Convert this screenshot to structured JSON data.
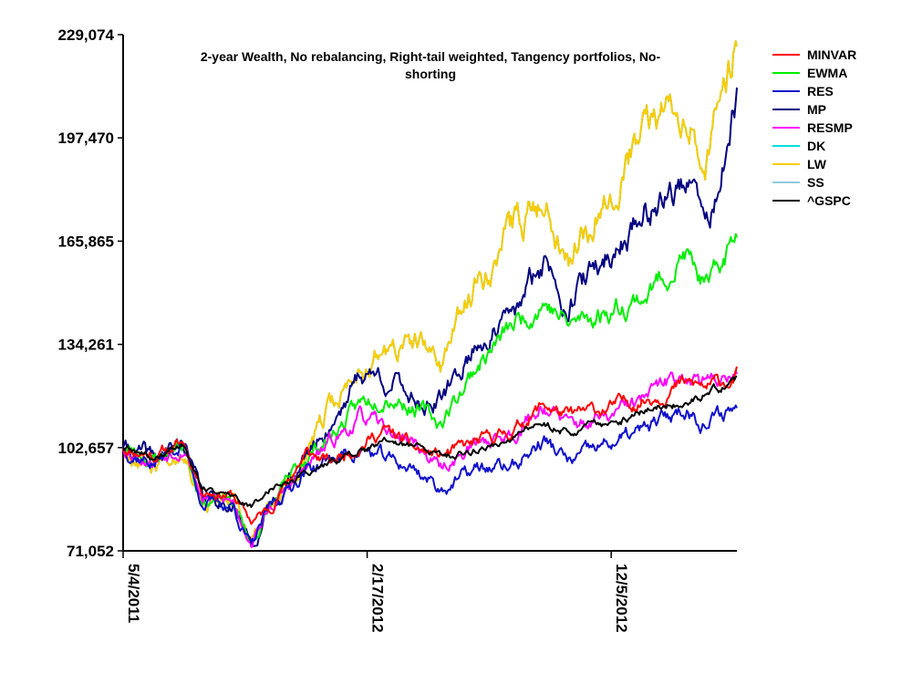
{
  "chart_data": {
    "type": "line",
    "title": "2-year Wealth, No rebalancing, Right-tail weighted, Tangency portfolios, No-shorting",
    "title_lines": [
      "2-year Wealth, No rebalancing, Right-tail weighted, Tangency portfolios, No-",
      "shorting"
    ],
    "xlabel": "",
    "ylabel": "",
    "ylim": [
      71052,
      229074
    ],
    "y_ticks": [
      "71,052",
      "102,657",
      "134,261",
      "165,865",
      "197,470",
      "229,074"
    ],
    "y_tick_values": [
      71052,
      102657,
      134261,
      165865,
      197470,
      229074
    ],
    "x_ticks": [
      "5/4/2011",
      "2/17/2012",
      "12/5/2012"
    ],
    "x_tick_index": [
      0,
      200,
      400
    ],
    "n_points": 504,
    "legend_position": "top-right",
    "series": [
      {
        "name": "MINVAR",
        "color": "#ff0000",
        "anchors": [
          [
            0,
            102657
          ],
          [
            25,
            100500
          ],
          [
            50,
            104000
          ],
          [
            65,
            90000
          ],
          [
            90,
            88000
          ],
          [
            105,
            80000
          ],
          [
            120,
            84000
          ],
          [
            150,
            101000
          ],
          [
            170,
            98000
          ],
          [
            195,
            104000
          ],
          [
            215,
            108000
          ],
          [
            240,
            102000
          ],
          [
            260,
            100000
          ],
          [
            290,
            104000
          ],
          [
            320,
            108000
          ],
          [
            345,
            116000
          ],
          [
            365,
            112000
          ],
          [
            400,
            115000
          ],
          [
            430,
            118000
          ],
          [
            460,
            122000
          ],
          [
            480,
            121000
          ],
          [
            503,
            124500
          ]
        ]
      },
      {
        "name": "EWMA",
        "color": "#00ee00",
        "anchors": [
          [
            0,
            102657
          ],
          [
            25,
            99000
          ],
          [
            50,
            104000
          ],
          [
            65,
            87000
          ],
          [
            90,
            86000
          ],
          [
            105,
            73000
          ],
          [
            120,
            84000
          ],
          [
            150,
            100000
          ],
          [
            170,
            106000
          ],
          [
            195,
            116000
          ],
          [
            215,
            120000
          ],
          [
            240,
            115000
          ],
          [
            260,
            110000
          ],
          [
            290,
            128000
          ],
          [
            320,
            140000
          ],
          [
            345,
            148000
          ],
          [
            365,
            140000
          ],
          [
            400,
            145000
          ],
          [
            430,
            150000
          ],
          [
            460,
            162000
          ],
          [
            480,
            150000
          ],
          [
            503,
            169000
          ]
        ]
      },
      {
        "name": "RES",
        "color": "#1010cc",
        "anchors": [
          [
            0,
            102657
          ],
          [
            25,
            98000
          ],
          [
            50,
            104000
          ],
          [
            65,
            86000
          ],
          [
            90,
            85000
          ],
          [
            105,
            72000
          ],
          [
            120,
            84000
          ],
          [
            150,
            96000
          ],
          [
            170,
            99000
          ],
          [
            195,
            102000
          ],
          [
            215,
            99000
          ],
          [
            240,
            96000
          ],
          [
            260,
            90000
          ],
          [
            290,
            96000
          ],
          [
            320,
            97000
          ],
          [
            345,
            105000
          ],
          [
            365,
            98000
          ],
          [
            400,
            104000
          ],
          [
            430,
            108000
          ],
          [
            460,
            115000
          ],
          [
            480,
            110000
          ],
          [
            503,
            116000
          ]
        ]
      },
      {
        "name": "MP",
        "color": "#000080",
        "anchors": [
          [
            0,
            102657
          ],
          [
            25,
            99000
          ],
          [
            50,
            104000
          ],
          [
            65,
            87000
          ],
          [
            90,
            86000
          ],
          [
            105,
            72000
          ],
          [
            120,
            84000
          ],
          [
            150,
            100000
          ],
          [
            170,
            110000
          ],
          [
            195,
            126000
          ],
          [
            215,
            124000
          ],
          [
            240,
            118000
          ],
          [
            260,
            116000
          ],
          [
            290,
            135000
          ],
          [
            320,
            142000
          ],
          [
            345,
            160000
          ],
          [
            365,
            148000
          ],
          [
            400,
            162000
          ],
          [
            430,
            176000
          ],
          [
            460,
            184000
          ],
          [
            480,
            170000
          ],
          [
            503,
            207000
          ]
        ]
      },
      {
        "name": "RESMP",
        "color": "#ff00ff",
        "anchors": [
          [
            0,
            102657
          ],
          [
            25,
            99000
          ],
          [
            50,
            104000
          ],
          [
            65,
            87000
          ],
          [
            90,
            86000
          ],
          [
            105,
            74000
          ],
          [
            120,
            84000
          ],
          [
            150,
            96000
          ],
          [
            170,
            104000
          ],
          [
            195,
            112000
          ],
          [
            215,
            108000
          ],
          [
            240,
            104000
          ],
          [
            260,
            96000
          ],
          [
            290,
            104000
          ],
          [
            320,
            107000
          ],
          [
            345,
            116000
          ],
          [
            365,
            109000
          ],
          [
            400,
            112000
          ],
          [
            430,
            118000
          ],
          [
            460,
            126000
          ],
          [
            480,
            122000
          ],
          [
            503,
            127500
          ]
        ]
      },
      {
        "name": "DK",
        "color": "#00e0e0",
        "anchors": [
          [
            0,
            102657
          ],
          [
            25,
            98000
          ],
          [
            50,
            104000
          ],
          [
            65,
            87000
          ],
          [
            90,
            85000
          ],
          [
            105,
            73000
          ],
          [
            120,
            84000
          ],
          [
            150,
            100000
          ],
          [
            170,
            114000
          ],
          [
            195,
            128000
          ],
          [
            215,
            132000
          ],
          [
            240,
            134000
          ],
          [
            260,
            128000
          ],
          [
            290,
            154000
          ],
          [
            320,
            170000
          ],
          [
            345,
            180000
          ],
          [
            365,
            162000
          ],
          [
            400,
            184000
          ],
          [
            430,
            200000
          ],
          [
            460,
            210000
          ],
          [
            480,
            194000
          ],
          [
            503,
            229000
          ]
        ]
      },
      {
        "name": "LW",
        "color": "#ffcc00",
        "anchors": [
          [
            0,
            102657
          ],
          [
            25,
            98000
          ],
          [
            50,
            104000
          ],
          [
            65,
            87000
          ],
          [
            90,
            85000
          ],
          [
            105,
            73000
          ],
          [
            120,
            84000
          ],
          [
            150,
            100000
          ],
          [
            170,
            114000
          ],
          [
            195,
            128000
          ],
          [
            215,
            132000
          ],
          [
            240,
            134000
          ],
          [
            260,
            128000
          ],
          [
            290,
            154000
          ],
          [
            320,
            170000
          ],
          [
            345,
            180000
          ],
          [
            365,
            162000
          ],
          [
            400,
            184000
          ],
          [
            430,
            200000
          ],
          [
            460,
            210000
          ],
          [
            480,
            194000
          ],
          [
            503,
            229000
          ]
        ]
      },
      {
        "name": "SS",
        "color": "#90c8d8",
        "anchors": [
          [
            0,
            102657
          ],
          [
            25,
            98000
          ],
          [
            50,
            104000
          ],
          [
            65,
            87000
          ],
          [
            90,
            85000
          ],
          [
            105,
            73000
          ],
          [
            120,
            84000
          ],
          [
            150,
            100000
          ],
          [
            170,
            114000
          ],
          [
            195,
            128000
          ],
          [
            215,
            132000
          ],
          [
            240,
            134000
          ],
          [
            260,
            128000
          ],
          [
            290,
            154000
          ],
          [
            320,
            170000
          ],
          [
            345,
            180000
          ],
          [
            365,
            162000
          ],
          [
            400,
            184000
          ],
          [
            430,
            200000
          ],
          [
            460,
            210000
          ],
          [
            480,
            194000
          ],
          [
            503,
            229000
          ]
        ]
      },
      {
        "name": "^GSPC",
        "color": "#000000",
        "anchors": [
          [
            0,
            102657
          ],
          [
            25,
            99000
          ],
          [
            50,
            104000
          ],
          [
            65,
            90000
          ],
          [
            90,
            88000
          ],
          [
            105,
            84000
          ],
          [
            120,
            90000
          ],
          [
            150,
            95000
          ],
          [
            170,
            98000
          ],
          [
            195,
            102000
          ],
          [
            215,
            104000
          ],
          [
            240,
            103000
          ],
          [
            260,
            100000
          ],
          [
            290,
            102000
          ],
          [
            320,
            106000
          ],
          [
            345,
            110000
          ],
          [
            365,
            108000
          ],
          [
            400,
            110000
          ],
          [
            430,
            114000
          ],
          [
            460,
            117000
          ],
          [
            480,
            119000
          ],
          [
            503,
            123000
          ]
        ]
      }
    ]
  }
}
